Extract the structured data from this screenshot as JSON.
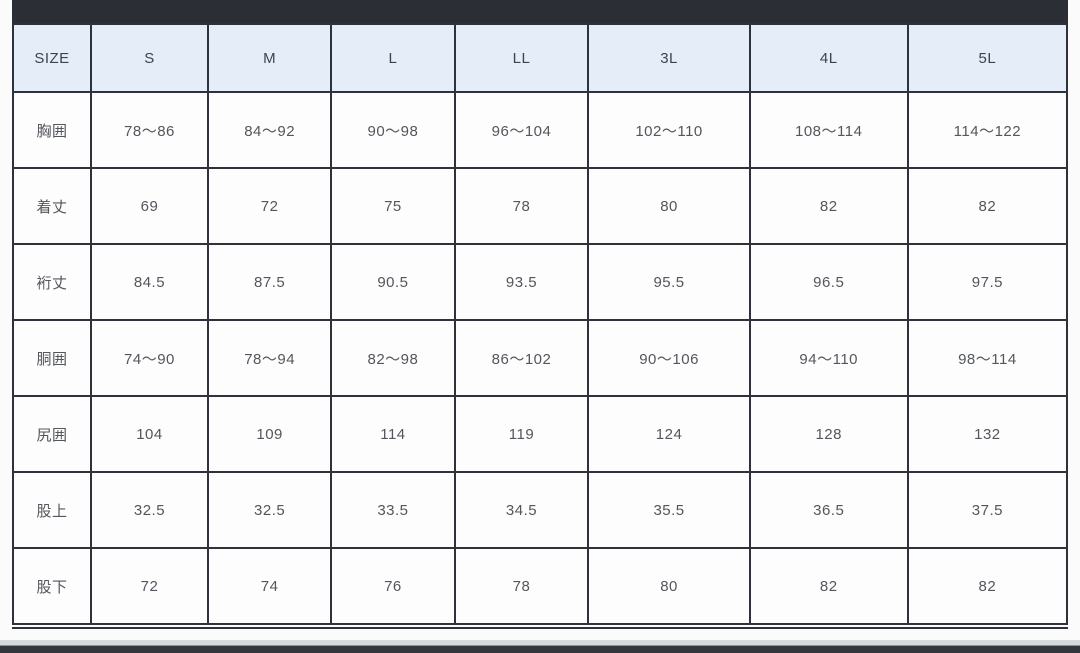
{
  "table": {
    "columns": [
      "SIZE",
      "S",
      "M",
      "L",
      "LL",
      "3L",
      "4L",
      "5L"
    ],
    "rows": [
      {
        "label": "胸囲",
        "values": [
          "78〜86",
          "84〜92",
          "90〜98",
          "96〜104",
          "102〜110",
          "108〜114",
          "114〜122"
        ]
      },
      {
        "label": "着丈",
        "values": [
          "69",
          "72",
          "75",
          "78",
          "80",
          "82",
          "82"
        ]
      },
      {
        "label": "裄丈",
        "values": [
          "84.5",
          "87.5",
          "90.5",
          "93.5",
          "95.5",
          "96.5",
          "97.5"
        ]
      },
      {
        "label": "胴囲",
        "values": [
          "74〜90",
          "78〜94",
          "82〜98",
          "86〜102",
          "90〜106",
          "94〜110",
          "98〜114"
        ]
      },
      {
        "label": "尻囲",
        "values": [
          "104",
          "109",
          "114",
          "119",
          "124",
          "128",
          "132"
        ]
      },
      {
        "label": "股上",
        "values": [
          "32.5",
          "32.5",
          "33.5",
          "34.5",
          "35.5",
          "36.5",
          "37.5"
        ]
      },
      {
        "label": "股下",
        "values": [
          "72",
          "74",
          "76",
          "78",
          "80",
          "82",
          "82"
        ]
      }
    ]
  },
  "colors": {
    "header_bg": "#e5edf9",
    "border": "#2f323a",
    "top_bar": "#2b2e34",
    "bottom_bar": "#33363c",
    "header_text": "#3f434d",
    "cell_text": "#53565c"
  }
}
